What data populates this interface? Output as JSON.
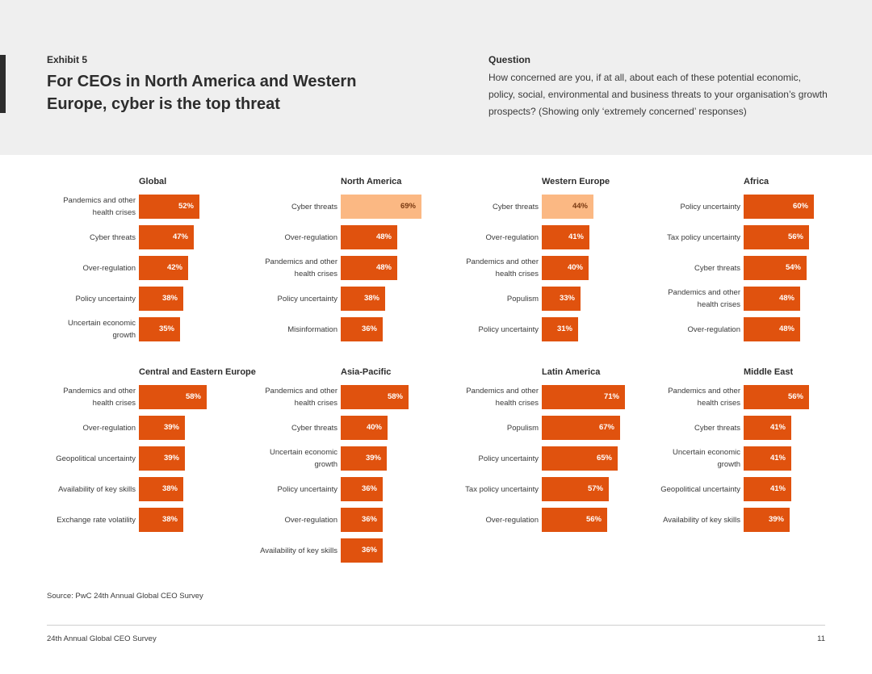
{
  "header": {
    "exhibit": "Exhibit 5",
    "title": "For CEOs in North America and Western Europe, cyber is the top threat",
    "question_label": "Question",
    "question_text": "How concerned are you, if at all, about each of these potential economic, policy, social, environmental and business threats to your organisation’s growth prospects? (Showing only ‘extremely concerned’ responses)"
  },
  "colors": {
    "bar": "#e0520e",
    "highlight_bar": "#fbb883",
    "header_bg": "#efefef"
  },
  "chart_data": [
    {
      "type": "bar",
      "orientation": "horizontal",
      "title": "Global",
      "categories": [
        "Pandemics and other health crises",
        "Cyber threats",
        "Over-regulation",
        "Policy uncertainty",
        "Uncertain economic growth"
      ],
      "values": [
        52,
        47,
        42,
        38,
        35
      ],
      "unit": "%",
      "highlight": [],
      "xlim": [
        0,
        100
      ]
    },
    {
      "type": "bar",
      "orientation": "horizontal",
      "title": "North America",
      "categories": [
        "Cyber threats",
        "Over-regulation",
        "Pandemics and other health crises",
        "Policy uncertainty",
        "Misinformation"
      ],
      "values": [
        69,
        48,
        48,
        38,
        36
      ],
      "unit": "%",
      "highlight": [
        0
      ],
      "xlim": [
        0,
        100
      ]
    },
    {
      "type": "bar",
      "orientation": "horizontal",
      "title": "Western Europe",
      "categories": [
        "Cyber threats",
        "Over-regulation",
        "Pandemics and other health crises",
        "Populism",
        "Policy uncertainty"
      ],
      "values": [
        44,
        41,
        40,
        33,
        31
      ],
      "unit": "%",
      "highlight": [
        0
      ],
      "xlim": [
        0,
        100
      ]
    },
    {
      "type": "bar",
      "orientation": "horizontal",
      "title": "Africa",
      "categories": [
        "Policy uncertainty",
        "Tax policy uncertainty",
        "Cyber threats",
        "Pandemics and other health crises",
        "Over-regulation"
      ],
      "values": [
        60,
        56,
        54,
        48,
        48
      ],
      "unit": "%",
      "highlight": [],
      "xlim": [
        0,
        100
      ]
    },
    {
      "type": "bar",
      "orientation": "horizontal",
      "title": "Central and Eastern Europe",
      "categories": [
        "Pandemics and other health crises",
        "Over-regulation",
        "Geopolitical uncertainty",
        "Availability of key skills",
        "Exchange rate volatility"
      ],
      "values": [
        58,
        39,
        39,
        38,
        38
      ],
      "unit": "%",
      "highlight": [],
      "xlim": [
        0,
        100
      ]
    },
    {
      "type": "bar",
      "orientation": "horizontal",
      "title": "Asia-Pacific",
      "categories": [
        "Pandemics and other health crises",
        "Cyber threats",
        "Uncertain economic growth",
        "Policy uncertainty",
        "Over-regulation",
        "Availability of key skills"
      ],
      "values": [
        58,
        40,
        39,
        36,
        36,
        36
      ],
      "unit": "%",
      "highlight": [],
      "xlim": [
        0,
        100
      ]
    },
    {
      "type": "bar",
      "orientation": "horizontal",
      "title": "Latin America",
      "categories": [
        "Pandemics and other health crises",
        "Populism",
        "Policy uncertainty",
        "Tax policy uncertainty",
        "Over-regulation"
      ],
      "values": [
        71,
        67,
        65,
        57,
        56
      ],
      "unit": "%",
      "highlight": [],
      "xlim": [
        0,
        100
      ]
    },
    {
      "type": "bar",
      "orientation": "horizontal",
      "title": "Middle East",
      "categories": [
        "Pandemics and other health crises",
        "Cyber threats",
        "Uncertain economic growth",
        "Geopolitical uncertainty",
        "Availability of key skills"
      ],
      "values": [
        56,
        41,
        41,
        41,
        39
      ],
      "unit": "%",
      "highlight": [],
      "xlim": [
        0,
        100
      ]
    }
  ],
  "footer": {
    "source": "Source: PwC 24th Annual Global CEO Survey",
    "publication": "24th Annual Global CEO Survey",
    "page_number": "11"
  }
}
